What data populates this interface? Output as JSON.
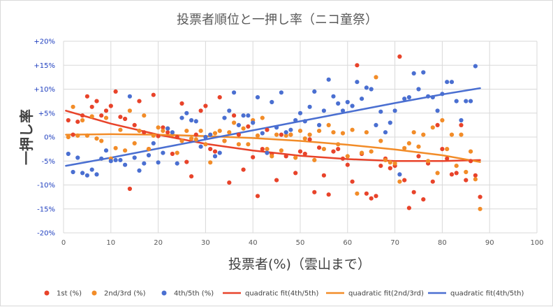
{
  "chart_data": {
    "type": "scatter",
    "title": "投票者順位と一押し率（ニコ童祭）",
    "xlabel": "投票者(%)（雲山まで）",
    "ylabel": "一押し率",
    "xlim": [
      0,
      100
    ],
    "ylim": [
      -20,
      20
    ],
    "x_ticks": [
      "0",
      "10",
      "20",
      "30",
      "40",
      "50",
      "60",
      "70",
      "80",
      "90",
      "100"
    ],
    "y_ticks": [
      "+20%",
      "+15%",
      "+10%",
      "+5%",
      "0%",
      "-5%",
      "-10%",
      "-15%",
      "-20%"
    ],
    "grid": true,
    "legend_position": "bottom",
    "series": [
      {
        "name": "1st (%)",
        "color": "#e8432a",
        "kind": "scatter",
        "points": [
          [
            1,
            3.5
          ],
          [
            2,
            0.5
          ],
          [
            3,
            3.2
          ],
          [
            4,
            4.5
          ],
          [
            5,
            8.5
          ],
          [
            6,
            6.3
          ],
          [
            7,
            7.5
          ],
          [
            8,
            4.5
          ],
          [
            9,
            5.5
          ],
          [
            10,
            6.5
          ],
          [
            11,
            9.5
          ],
          [
            12,
            4.2
          ],
          [
            13,
            3.8
          ],
          [
            14,
            -10.8
          ],
          [
            15,
            2.5
          ],
          [
            16,
            7.5
          ],
          [
            17,
            1.0
          ],
          [
            18,
            -2.5
          ],
          [
            19,
            8.8
          ],
          [
            20,
            0.2
          ],
          [
            21,
            2.0
          ],
          [
            22,
            1.0
          ],
          [
            23,
            -3.5
          ],
          [
            24,
            0.0
          ],
          [
            25,
            7.0
          ],
          [
            26,
            -5.2
          ],
          [
            27,
            -8.2
          ],
          [
            28,
            0.5
          ],
          [
            29,
            5.5
          ],
          [
            30,
            6.5
          ],
          [
            31,
            -2.5
          ],
          [
            32,
            -3.0
          ],
          [
            33,
            8.3
          ],
          [
            34,
            -0.8
          ],
          [
            35,
            -9.5
          ],
          [
            36,
            4.5
          ],
          [
            37,
            0.5
          ],
          [
            38,
            -6.8
          ],
          [
            39,
            2.2
          ],
          [
            40,
            -4.2
          ],
          [
            41,
            -12.3
          ],
          [
            42,
            -2.5
          ],
          [
            43,
            1.5
          ],
          [
            44,
            -3.5
          ],
          [
            45,
            -9.0
          ],
          [
            46,
            0.5
          ],
          [
            47,
            -4.0
          ],
          [
            48,
            0.5
          ],
          [
            49,
            -7.5
          ],
          [
            50,
            -3.0
          ],
          [
            51,
            -3.5
          ],
          [
            52,
            -0.5
          ],
          [
            53,
            -11.5
          ],
          [
            54,
            -2.2
          ],
          [
            55,
            -8.0
          ],
          [
            56,
            -12.0
          ],
          [
            57,
            -3.0
          ],
          [
            58,
            -2.5
          ],
          [
            59,
            -4.5
          ],
          [
            60,
            -5.8
          ],
          [
            61,
            -9.3
          ],
          [
            62,
            15.0
          ],
          [
            63,
            -3.5
          ],
          [
            64,
            -11.8
          ],
          [
            65,
            -12.8
          ],
          [
            66,
            -12.3
          ],
          [
            67,
            -6.0
          ],
          [
            68,
            -4.5
          ],
          [
            69,
            -6.5
          ],
          [
            70,
            -6.0
          ],
          [
            71,
            16.8
          ],
          [
            72,
            -9.0
          ],
          [
            73,
            -14.8
          ],
          [
            74,
            -11.5
          ],
          [
            75,
            -4.0
          ],
          [
            76,
            -13.0
          ],
          [
            77,
            -5.5
          ],
          [
            78,
            -9.3
          ],
          [
            79,
            2.5
          ],
          [
            80,
            -2.5
          ],
          [
            81,
            -4.5
          ],
          [
            82,
            -7.8
          ],
          [
            83,
            -7.5
          ],
          [
            84,
            2.5
          ],
          [
            85,
            -9.0
          ],
          [
            86,
            -5.0
          ],
          [
            87,
            -8.0
          ],
          [
            88,
            -12.5
          ]
        ]
      },
      {
        "name": "2nd/3rd (%)",
        "color": "#f28c28",
        "kind": "scatter",
        "points": [
          [
            1,
            0.0
          ],
          [
            2,
            6.3
          ],
          [
            3,
            0.3
          ],
          [
            4,
            3.5
          ],
          [
            5,
            0.3
          ],
          [
            6,
            4.3
          ],
          [
            7,
            -0.3
          ],
          [
            8,
            -0.8
          ],
          [
            9,
            4.0
          ],
          [
            10,
            -4.5
          ],
          [
            11,
            -2.3
          ],
          [
            12,
            1.5
          ],
          [
            13,
            -2.8
          ],
          [
            14,
            5.5
          ],
          [
            15,
            -1.3
          ],
          [
            16,
            1.3
          ],
          [
            17,
            4.5
          ],
          [
            18,
            -2.5
          ],
          [
            19,
            0.3
          ],
          [
            20,
            2.0
          ],
          [
            21,
            1.3
          ],
          [
            22,
            1.8
          ],
          [
            23,
            0.5
          ],
          [
            24,
            -3.3
          ],
          [
            25,
            -0.8
          ],
          [
            26,
            1.3
          ],
          [
            27,
            -0.3
          ],
          [
            28,
            -0.5
          ],
          [
            29,
            1.3
          ],
          [
            30,
            -1.5
          ],
          [
            31,
            -5.3
          ],
          [
            32,
            0.8
          ],
          [
            33,
            1.3
          ],
          [
            34,
            -0.8
          ],
          [
            35,
            1.0
          ],
          [
            36,
            3.0
          ],
          [
            37,
            -1.5
          ],
          [
            38,
            1.8
          ],
          [
            39,
            -1.5
          ],
          [
            40,
            3.5
          ],
          [
            41,
            0.3
          ],
          [
            42,
            4.0
          ],
          [
            43,
            -2.5
          ],
          [
            44,
            -4.0
          ],
          [
            45,
            0.5
          ],
          [
            46,
            -2.8
          ],
          [
            47,
            0.3
          ],
          [
            48,
            0.5
          ],
          [
            49,
            -4.3
          ],
          [
            50,
            1.3
          ],
          [
            51,
            -0.3
          ],
          [
            52,
            0.5
          ],
          [
            53,
            -4.8
          ],
          [
            54,
            1.3
          ],
          [
            55,
            -2.5
          ],
          [
            56,
            2.5
          ],
          [
            57,
            1.0
          ],
          [
            58,
            -1.5
          ],
          [
            59,
            0.8
          ],
          [
            60,
            -4.0
          ],
          [
            61,
            1.5
          ],
          [
            62,
            -11.8
          ],
          [
            63,
            -3.3
          ],
          [
            64,
            1.0
          ],
          [
            65,
            -3.0
          ],
          [
            66,
            12.5
          ],
          [
            67,
            -0.8
          ],
          [
            68,
            -4.8
          ],
          [
            69,
            -5.3
          ],
          [
            70,
            -5.5
          ],
          [
            71,
            -9.3
          ],
          [
            72,
            -2.3
          ],
          [
            73,
            -1.3
          ],
          [
            74,
            1.0
          ],
          [
            75,
            -2.0
          ],
          [
            76,
            0.5
          ],
          [
            77,
            -5.0
          ],
          [
            78,
            2.0
          ],
          [
            79,
            -7.5
          ],
          [
            80,
            3.5
          ],
          [
            81,
            -2.5
          ],
          [
            82,
            0.5
          ],
          [
            83,
            -6.0
          ],
          [
            84,
            0.5
          ],
          [
            85,
            -7.3
          ],
          [
            86,
            -3.0
          ],
          [
            87,
            -8.8
          ],
          [
            88,
            -15.0
          ]
        ]
      },
      {
        "name": "4th/5th (%)",
        "color": "#4a6fd1",
        "kind": "scatter",
        "points": [
          [
            1,
            -3.5
          ],
          [
            2,
            -7.3
          ],
          [
            3,
            -4.3
          ],
          [
            4,
            -7.5
          ],
          [
            5,
            -8.0
          ],
          [
            6,
            -6.8
          ],
          [
            7,
            -7.8
          ],
          [
            8,
            -4.5
          ],
          [
            9,
            -2.8
          ],
          [
            10,
            -5.0
          ],
          [
            11,
            -4.8
          ],
          [
            12,
            -4.8
          ],
          [
            13,
            -5.8
          ],
          [
            14,
            8.5
          ],
          [
            15,
            -4.3
          ],
          [
            16,
            -7.0
          ],
          [
            17,
            -5.5
          ],
          [
            18,
            -3.8
          ],
          [
            19,
            -1.3
          ],
          [
            20,
            -5.3
          ],
          [
            21,
            -3.3
          ],
          [
            22,
            1.8
          ],
          [
            23,
            1.0
          ],
          [
            24,
            -5.5
          ],
          [
            25,
            4.0
          ],
          [
            26,
            5.0
          ],
          [
            27,
            3.5
          ],
          [
            28,
            3.3
          ],
          [
            29,
            -2.0
          ],
          [
            30,
            0.0
          ],
          [
            31,
            0.5
          ],
          [
            32,
            -4.0
          ],
          [
            33,
            -3.3
          ],
          [
            34,
            4.0
          ],
          [
            35,
            5.5
          ],
          [
            36,
            9.3
          ],
          [
            37,
            2.5
          ],
          [
            38,
            4.5
          ],
          [
            39,
            4.5
          ],
          [
            40,
            3.0
          ],
          [
            41,
            8.3
          ],
          [
            42,
            0.8
          ],
          [
            43,
            -3.3
          ],
          [
            44,
            7.3
          ],
          [
            45,
            2.0
          ],
          [
            46,
            9.3
          ],
          [
            47,
            1.0
          ],
          [
            48,
            1.5
          ],
          [
            49,
            3.5
          ],
          [
            50,
            5.0
          ],
          [
            51,
            3.3
          ],
          [
            52,
            6.3
          ],
          [
            53,
            9.5
          ],
          [
            54,
            2.5
          ],
          [
            55,
            5.5
          ],
          [
            56,
            12.0
          ],
          [
            57,
            8.5
          ],
          [
            58,
            7.0
          ],
          [
            59,
            5.5
          ],
          [
            60,
            7.3
          ],
          [
            61,
            6.5
          ],
          [
            62,
            11.5
          ],
          [
            63,
            8.0
          ],
          [
            64,
            10.3
          ],
          [
            65,
            10.0
          ],
          [
            66,
            2.5
          ],
          [
            67,
            5.3
          ],
          [
            68,
            1.0
          ],
          [
            69,
            3.0
          ],
          [
            70,
            5.5
          ],
          [
            71,
            -7.8
          ],
          [
            72,
            8.0
          ],
          [
            73,
            8.3
          ],
          [
            74,
            13.3
          ],
          [
            75,
            10.0
          ],
          [
            76,
            13.5
          ],
          [
            77,
            8.5
          ],
          [
            78,
            8.3
          ],
          [
            79,
            5.5
          ],
          [
            80,
            9.0
          ],
          [
            81,
            11.5
          ],
          [
            82,
            11.5
          ],
          [
            83,
            7.5
          ],
          [
            84,
            3.5
          ],
          [
            85,
            7.5
          ],
          [
            86,
            7.5
          ],
          [
            87,
            14.8
          ]
        ]
      },
      {
        "name": "quadratic fit(4th/5th)",
        "color": "#e8432a",
        "kind": "line",
        "points": [
          [
            0.5,
            5.5
          ],
          [
            10,
            2.8
          ],
          [
            20,
            0.5
          ],
          [
            30,
            -1.4
          ],
          [
            40,
            -2.8
          ],
          [
            50,
            -3.9
          ],
          [
            60,
            -4.6
          ],
          [
            70,
            -5.0
          ],
          [
            80,
            -5.0
          ],
          [
            88,
            -4.8
          ]
        ]
      },
      {
        "name": "quadratic fit(2nd/3rd)",
        "color": "#f28c28",
        "kind": "line",
        "points": [
          [
            0.5,
            0.5
          ],
          [
            10,
            0.6
          ],
          [
            20,
            0.5
          ],
          [
            30,
            0.2
          ],
          [
            40,
            -0.2
          ],
          [
            50,
            -0.8
          ],
          [
            60,
            -1.6
          ],
          [
            70,
            -2.6
          ],
          [
            80,
            -3.8
          ],
          [
            88,
            -5.2
          ]
        ]
      },
      {
        "name": "quadratic fit(4th/5th)",
        "color": "#4a6fd1",
        "kind": "line",
        "points": [
          [
            0.5,
            -6.0
          ],
          [
            10,
            -4.3
          ],
          [
            20,
            -2.4
          ],
          [
            30,
            -0.5
          ],
          [
            40,
            1.4
          ],
          [
            50,
            3.3
          ],
          [
            60,
            5.2
          ],
          [
            70,
            7.1
          ],
          [
            80,
            8.9
          ],
          [
            88,
            10.2
          ]
        ]
      }
    ]
  }
}
